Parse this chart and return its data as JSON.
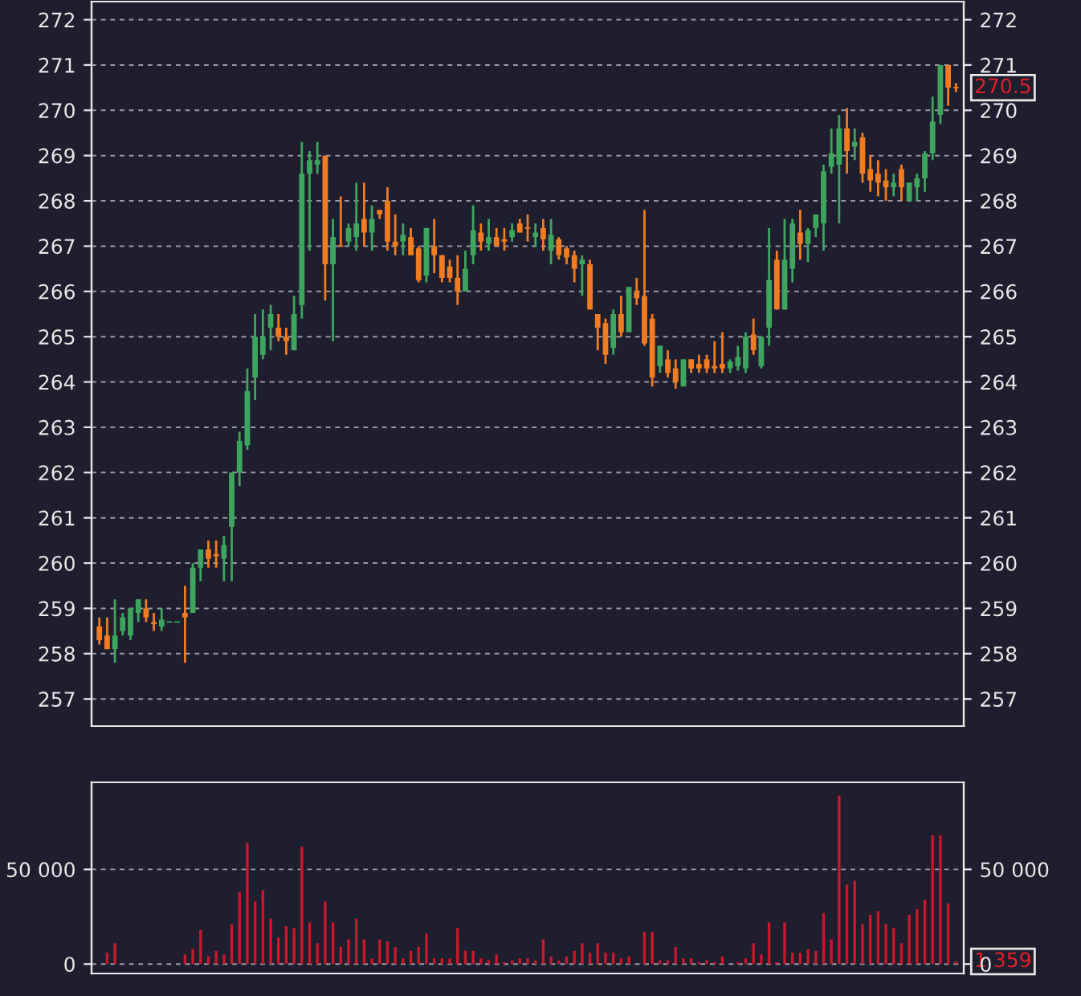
{
  "chart_data": [
    {
      "type": "candlestick",
      "categories": [
        null,
        null,
        null,
        null,
        null,
        null,
        null,
        null,
        null,
        null,
        null,
        null,
        null,
        null,
        null,
        null,
        null,
        null,
        null,
        null,
        null,
        null,
        null,
        null,
        null,
        null,
        null,
        null,
        null,
        null,
        null,
        null,
        null,
        null,
        null,
        null,
        null,
        null,
        null,
        null,
        null,
        null,
        null,
        null,
        null,
        null,
        null,
        null,
        null,
        null,
        null,
        null,
        null,
        null,
        null,
        null,
        null,
        null,
        null,
        null,
        null,
        null,
        null,
        null,
        null,
        null,
        null,
        null,
        null,
        null,
        null,
        null,
        null,
        null,
        null,
        null,
        null,
        null,
        null,
        null,
        null,
        null,
        null,
        null,
        null,
        null,
        null,
        null,
        null,
        null,
        null,
        null,
        null,
        null,
        null,
        null,
        null,
        null,
        null,
        null,
        null,
        null,
        null,
        null,
        null,
        null,
        null,
        null,
        null,
        null,
        null
      ],
      "ohlc": [
        [
          258.6,
          258.8,
          258.2,
          258.3
        ],
        [
          258.4,
          258.8,
          258.1,
          258.1
        ],
        [
          258.1,
          259.2,
          257.8,
          258.4
        ],
        [
          258.5,
          258.9,
          258.4,
          258.8
        ],
        [
          258.4,
          259.0,
          258.3,
          259.0
        ],
        [
          258.9,
          259.2,
          258.7,
          259.2
        ],
        [
          259.0,
          259.2,
          258.7,
          258.8
        ],
        [
          258.7,
          258.9,
          258.5,
          258.65
        ],
        [
          258.6,
          259.0,
          258.5,
          258.75
        ],
        [
          258.7,
          258.7,
          258.7,
          258.7
        ],
        [
          258.7,
          258.7,
          258.7,
          258.7
        ],
        [
          258.9,
          259.5,
          257.8,
          258.8
        ],
        [
          258.9,
          260.0,
          258.9,
          259.9
        ],
        [
          259.9,
          260.3,
          259.6,
          260.3
        ],
        [
          260.3,
          260.5,
          259.9,
          260.1
        ],
        [
          260.2,
          260.5,
          259.9,
          260.15
        ],
        [
          260.1,
          260.6,
          259.6,
          260.4
        ],
        [
          260.8,
          262.0,
          259.6,
          262.0
        ],
        [
          262.0,
          262.9,
          261.7,
          262.7
        ],
        [
          262.6,
          264.3,
          262.5,
          263.8
        ],
        [
          264.1,
          265.5,
          263.6,
          265.0
        ],
        [
          264.6,
          265.6,
          264.5,
          265.0
        ],
        [
          265.2,
          265.7,
          264.7,
          265.5
        ],
        [
          265.2,
          265.5,
          264.9,
          265.0
        ],
        [
          265.0,
          265.2,
          264.6,
          264.9
        ],
        [
          264.7,
          265.9,
          264.7,
          265.5
        ],
        [
          265.7,
          269.3,
          265.4,
          268.6
        ],
        [
          268.6,
          269.1,
          266.9,
          268.9
        ],
        [
          268.8,
          269.3,
          268.6,
          268.9
        ],
        [
          269.0,
          269.0,
          265.8,
          266.6
        ],
        [
          266.6,
          267.6,
          264.9,
          267.2
        ],
        [
          267.0,
          268.1,
          267.0,
          267.0
        ],
        [
          267.1,
          267.5,
          267.0,
          267.4
        ],
        [
          267.2,
          268.4,
          266.9,
          267.5
        ],
        [
          267.6,
          268.4,
          267.0,
          267.3
        ],
        [
          267.3,
          267.9,
          266.9,
          267.6
        ],
        [
          267.8,
          267.8,
          267.6,
          267.7
        ],
        [
          268.0,
          268.3,
          266.9,
          267.1
        ],
        [
          267.1,
          267.7,
          266.8,
          267.0
        ],
        [
          267.1,
          267.5,
          266.8,
          267.25
        ],
        [
          267.2,
          267.4,
          266.8,
          266.8
        ],
        [
          266.95,
          267.0,
          266.2,
          266.25
        ],
        [
          266.35,
          267.4,
          266.2,
          267.4
        ],
        [
          267.0,
          267.6,
          266.4,
          266.8
        ],
        [
          266.8,
          266.8,
          266.2,
          266.3
        ],
        [
          266.55,
          266.7,
          266.2,
          266.3
        ],
        [
          266.3,
          266.8,
          265.7,
          266.0
        ],
        [
          266.0,
          266.9,
          266.0,
          266.5
        ],
        [
          266.8,
          267.9,
          266.6,
          267.35
        ],
        [
          267.3,
          267.5,
          266.9,
          267.1
        ],
        [
          267.05,
          267.6,
          266.9,
          267.2
        ],
        [
          267.2,
          267.4,
          267.0,
          267.0
        ],
        [
          267.15,
          267.4,
          266.9,
          267.1
        ],
        [
          267.2,
          267.5,
          267.1,
          267.35
        ],
        [
          267.5,
          267.6,
          267.3,
          267.3
        ],
        [
          267.4,
          267.7,
          267.1,
          267.4
        ],
        [
          267.2,
          267.5,
          267.0,
          267.3
        ],
        [
          267.4,
          267.6,
          266.9,
          267.15
        ],
        [
          266.9,
          267.6,
          266.6,
          267.25
        ],
        [
          267.15,
          267.2,
          266.7,
          266.8
        ],
        [
          266.95,
          267.0,
          266.6,
          266.75
        ],
        [
          266.8,
          266.9,
          266.2,
          266.5
        ],
        [
          266.6,
          266.8,
          265.9,
          266.7
        ],
        [
          266.6,
          266.7,
          265.6,
          265.6
        ],
        [
          265.5,
          265.5,
          264.7,
          265.2
        ],
        [
          265.3,
          265.4,
          264.4,
          264.6
        ],
        [
          264.75,
          265.6,
          264.6,
          265.5
        ],
        [
          265.5,
          265.9,
          265.0,
          265.1
        ],
        [
          265.1,
          266.1,
          265.1,
          266.1
        ],
        [
          266.0,
          266.3,
          265.7,
          265.85
        ],
        [
          265.9,
          267.8,
          264.8,
          264.85
        ],
        [
          265.4,
          265.5,
          263.9,
          264.1
        ],
        [
          264.35,
          264.8,
          264.2,
          264.8
        ],
        [
          264.5,
          264.7,
          264.1,
          264.2
        ],
        [
          264.3,
          264.5,
          263.85,
          264.0
        ],
        [
          263.9,
          264.5,
          263.9,
          264.5
        ],
        [
          264.5,
          264.5,
          264.2,
          264.3
        ],
        [
          264.4,
          264.6,
          264.2,
          264.3
        ],
        [
          264.5,
          264.6,
          264.2,
          264.3
        ],
        [
          264.35,
          264.9,
          264.2,
          264.3
        ],
        [
          264.4,
          265.1,
          264.2,
          264.3
        ],
        [
          264.3,
          264.5,
          264.2,
          264.45
        ],
        [
          264.35,
          264.8,
          264.25,
          264.55
        ],
        [
          264.3,
          265.1,
          264.2,
          265.0
        ],
        [
          265.05,
          265.4,
          264.6,
          264.7
        ],
        [
          264.35,
          265.0,
          264.3,
          265.0
        ],
        [
          265.2,
          267.4,
          264.8,
          266.25
        ],
        [
          266.7,
          266.9,
          265.6,
          265.6
        ],
        [
          265.6,
          267.6,
          265.6,
          266.7
        ],
        [
          266.5,
          267.6,
          266.2,
          267.5
        ],
        [
          267.3,
          267.8,
          266.7,
          267.05
        ],
        [
          267.05,
          267.4,
          266.65,
          267.35
        ],
        [
          267.4,
          267.7,
          267.2,
          267.7
        ],
        [
          267.5,
          268.8,
          266.9,
          268.65
        ],
        [
          268.75,
          269.6,
          268.6,
          269.05
        ],
        [
          268.8,
          269.9,
          267.5,
          269.6
        ],
        [
          269.6,
          270.05,
          268.6,
          269.1
        ],
        [
          269.2,
          269.6,
          268.9,
          269.3
        ],
        [
          269.4,
          269.5,
          268.4,
          268.6
        ],
        [
          268.7,
          269.0,
          268.2,
          268.45
        ],
        [
          268.6,
          268.9,
          268.1,
          268.4
        ],
        [
          268.45,
          268.7,
          268.0,
          268.3
        ],
        [
          268.3,
          268.6,
          268.1,
          268.4
        ],
        [
          268.7,
          268.8,
          268.0,
          268.3
        ],
        [
          268.0,
          268.4,
          268.0,
          268.4
        ],
        [
          268.3,
          268.6,
          268.0,
          268.5
        ],
        [
          268.5,
          269.1,
          268.2,
          269.05
        ],
        [
          269.05,
          270.3,
          268.9,
          269.75
        ],
        [
          269.9,
          271.0,
          269.7,
          271.0
        ],
        [
          271.0,
          271.0,
          270.1,
          270.5
        ],
        [
          270.5,
          270.6,
          270.4,
          270.5
        ]
      ],
      "colors": [
        "#f07d22",
        "#f07d22",
        "#3ea55f",
        "#3ea55f",
        "#3ea55f",
        "#3ea55f",
        "#f07d22",
        "#f07d22",
        "#3ea55f",
        "#3ea55f",
        "#3ea55f",
        "#f07d22",
        "#3ea55f",
        "#3ea55f",
        "#f07d22",
        "#f07d22",
        "#3ea55f",
        "#3ea55f",
        "#3ea55f",
        "#3ea55f",
        "#3ea55f",
        "#3ea55f",
        "#3ea55f",
        "#f07d22",
        "#f07d22",
        "#3ea55f",
        "#3ea55f",
        "#3ea55f",
        "#3ea55f",
        "#f07d22",
        "#3ea55f",
        "#f07d22",
        "#3ea55f",
        "#3ea55f",
        "#f07d22",
        "#3ea55f",
        "#f07d22",
        "#f07d22",
        "#f07d22",
        "#3ea55f",
        "#f07d22",
        "#f07d22",
        "#3ea55f",
        "#f07d22",
        "#f07d22",
        "#f07d22",
        "#f07d22",
        "#3ea55f",
        "#3ea55f",
        "#f07d22",
        "#3ea55f",
        "#f07d22",
        "#f07d22",
        "#3ea55f",
        "#f07d22",
        "#f07d22",
        "#3ea55f",
        "#f07d22",
        "#3ea55f",
        "#f07d22",
        "#f07d22",
        "#f07d22",
        "#3ea55f",
        "#f07d22",
        "#f07d22",
        "#f07d22",
        "#3ea55f",
        "#f07d22",
        "#3ea55f",
        "#f07d22",
        "#f07d22",
        "#f07d22",
        "#3ea55f",
        "#f07d22",
        "#f07d22",
        "#3ea55f",
        "#f07d22",
        "#f07d22",
        "#f07d22",
        "#f07d22",
        "#f07d22",
        "#3ea55f",
        "#3ea55f",
        "#3ea55f",
        "#f07d22",
        "#3ea55f",
        "#3ea55f",
        "#f07d22",
        "#3ea55f",
        "#3ea55f",
        "#f07d22",
        "#3ea55f",
        "#3ea55f",
        "#3ea55f",
        "#3ea55f",
        "#3ea55f",
        "#f07d22",
        "#3ea55f",
        "#f07d22",
        "#f07d22",
        "#f07d22",
        "#f07d22",
        "#3ea55f",
        "#f07d22",
        "#3ea55f",
        "#3ea55f",
        "#3ea55f",
        "#3ea55f",
        "#3ea55f",
        "#f07d22",
        "#f07d22"
      ],
      "ylim": [
        256.4,
        272.4
      ],
      "yticks": [
        257,
        258,
        259,
        260,
        261,
        262,
        263,
        264,
        265,
        266,
        267,
        268,
        269,
        270,
        271,
        272
      ],
      "y2lim": [
        256.4,
        272.4
      ],
      "y2ticks": [
        257,
        258,
        259,
        260,
        261,
        262,
        263,
        264,
        265,
        266,
        267,
        268,
        269,
        270,
        271,
        272
      ],
      "grid": "y",
      "annotations": [
        "270.5"
      ]
    },
    {
      "type": "bar",
      "categories": [
        null,
        null,
        null,
        null,
        null,
        null,
        null,
        null,
        null,
        null,
        null,
        null,
        null,
        null,
        null,
        null,
        null,
        null,
        null,
        null,
        null,
        null,
        null,
        null,
        null,
        null,
        null,
        null,
        null,
        null,
        null,
        null,
        null,
        null,
        null,
        null,
        null,
        null,
        null,
        null,
        null,
        null,
        null,
        null,
        null,
        null,
        null,
        null,
        null,
        null,
        null,
        null,
        null,
        null,
        null,
        null,
        null,
        null,
        null,
        null,
        null,
        null,
        null,
        null,
        null,
        null,
        null,
        null,
        null,
        null,
        null,
        null,
        null,
        null,
        null,
        null,
        null,
        null,
        null,
        null,
        null,
        null,
        null,
        null,
        null,
        null,
        null,
        null,
        null,
        null,
        null,
        null,
        null,
        null,
        null,
        null,
        null,
        null,
        null,
        null,
        null,
        null,
        null,
        null,
        null,
        null,
        null,
        null,
        null,
        null,
        null
      ],
      "values": [
        0,
        6000,
        11000,
        0,
        0,
        0,
        0,
        0,
        0,
        0,
        0,
        5000,
        8000,
        18000,
        4000,
        7000,
        5000,
        21000,
        38000,
        64000,
        33000,
        39000,
        24000,
        14000,
        20000,
        19000,
        62000,
        22000,
        11000,
        33000,
        22000,
        9000,
        13000,
        24000,
        13000,
        3000,
        13000,
        12000,
        9000,
        3000,
        7000,
        9000,
        16000,
        3000,
        3000,
        3000,
        19000,
        7000,
        7000,
        3000,
        2000,
        5000,
        1000,
        2000,
        3000,
        3000,
        2000,
        13000,
        4000,
        2000,
        4000,
        7000,
        11000,
        6000,
        11000,
        6000,
        6000,
        3000,
        4000,
        0,
        17000,
        17000,
        2000,
        2000,
        9000,
        3000,
        3000,
        1000,
        2000,
        1000,
        4000,
        0,
        1000,
        3000,
        11000,
        5000,
        22000,
        1000,
        22000,
        6000,
        6000,
        8000,
        7000,
        27000,
        13000,
        89000,
        42000,
        44000,
        21000,
        26000,
        28000,
        21000,
        19000,
        11000,
        26000,
        29000,
        34000,
        68000,
        68000,
        32000,
        1359
      ],
      "color": "#c8182e",
      "ylim": [
        -5000,
        96000
      ],
      "yticks": [
        0,
        {
          "value": 50000,
          "label": "50 000"
        }
      ],
      "y2lim": [
        -5000,
        96000
      ],
      "y2ticks": [
        0,
        {
          "value": 50000,
          "label": "50 000"
        }
      ],
      "grid": "y",
      "annotations": [
        "1 359"
      ]
    }
  ]
}
